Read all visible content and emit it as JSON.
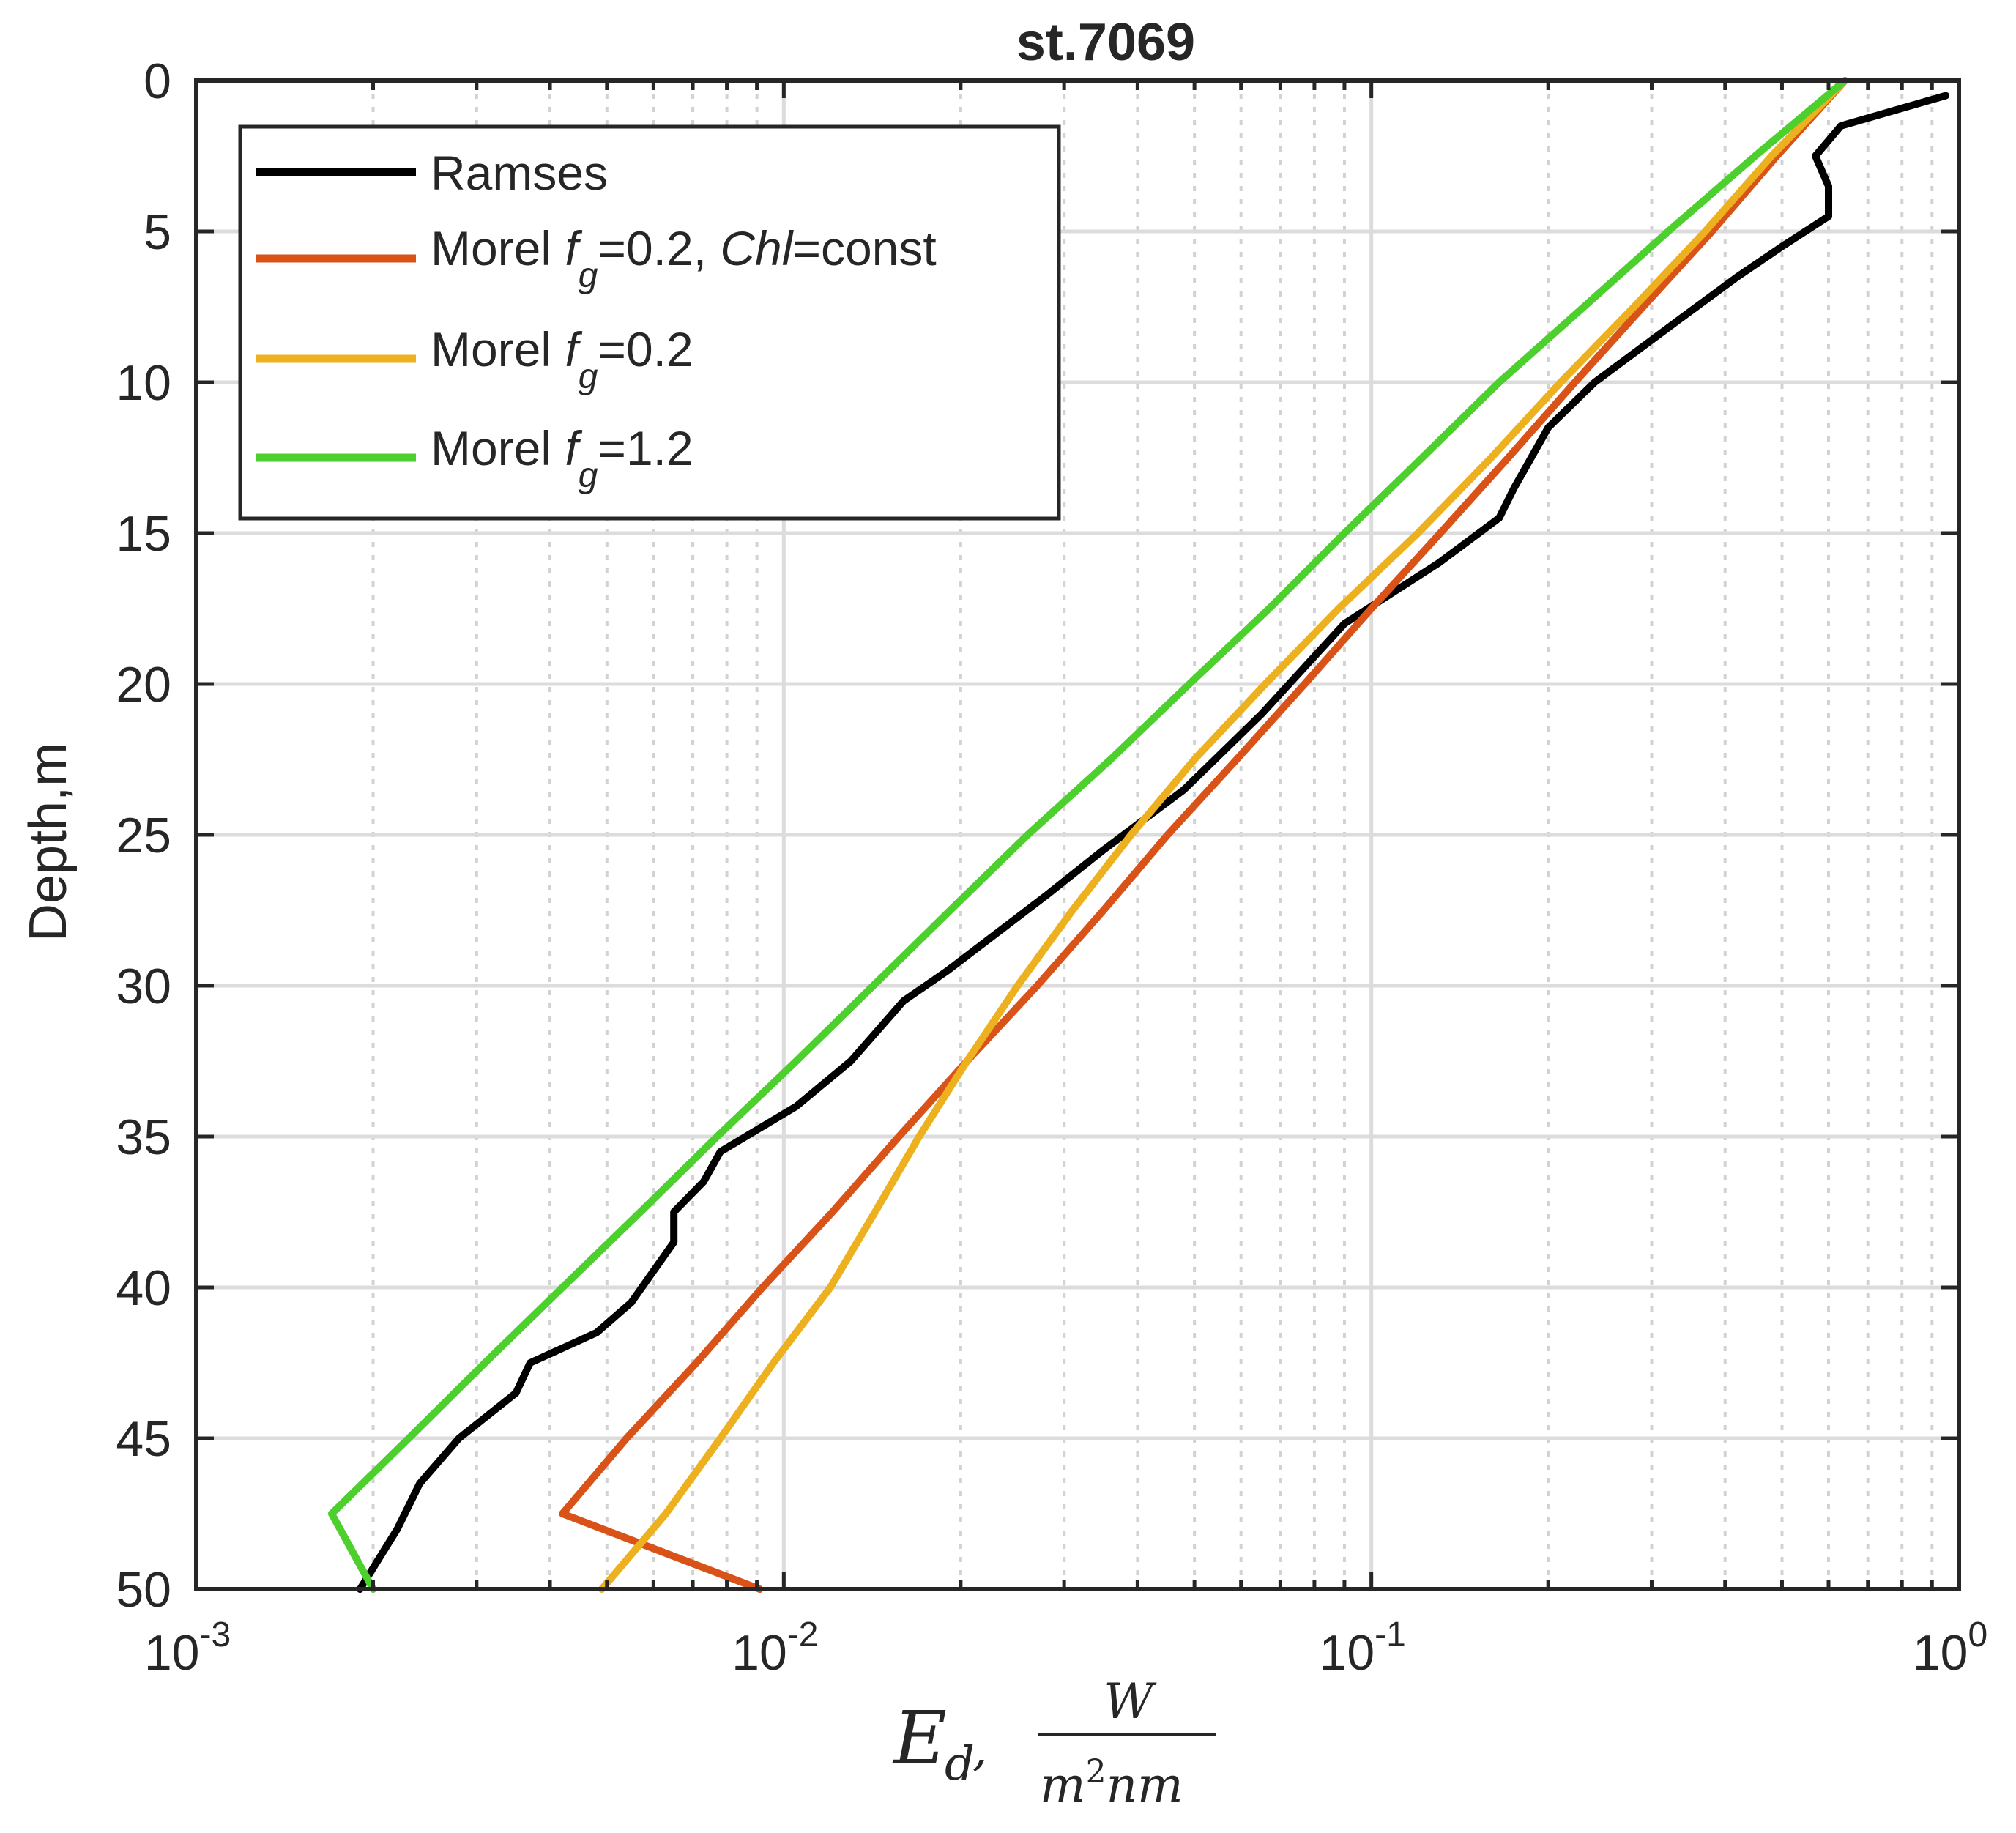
{
  "chart_data": {
    "type": "line",
    "title": "st.7069",
    "ylabel": "Depth,m",
    "xlabel": {
      "symbol": "E",
      "subscript": "d",
      "separator": ",",
      "numerator": "W",
      "denominator_m": "m",
      "denominator_power": "2",
      "denominator_rest": "nm"
    },
    "x_scale": "log",
    "xlim": [
      0.001,
      1
    ],
    "ylim": [
      0,
      50
    ],
    "y_reversed": true,
    "grid": true,
    "legend_position": "top-left",
    "x_ticks": [
      {
        "value": 0.001,
        "base": "10",
        "exp": "-3"
      },
      {
        "value": 0.01,
        "base": "10",
        "exp": "-2"
      },
      {
        "value": 0.1,
        "base": "10",
        "exp": "-1"
      },
      {
        "value": 1,
        "base": "10",
        "exp": "0"
      }
    ],
    "y_ticks": [
      {
        "value": 0,
        "label": "0"
      },
      {
        "value": 5,
        "label": "5"
      },
      {
        "value": 10,
        "label": "10"
      },
      {
        "value": 15,
        "label": "15"
      },
      {
        "value": 20,
        "label": "20"
      },
      {
        "value": 25,
        "label": "25"
      },
      {
        "value": 30,
        "label": "30"
      },
      {
        "value": 35,
        "label": "35"
      },
      {
        "value": 40,
        "label": "40"
      },
      {
        "value": 45,
        "label": "45"
      },
      {
        "value": 50,
        "label": "50"
      }
    ],
    "series": [
      {
        "name": "Ramses",
        "legend": {
          "pre": "Ramses"
        },
        "color": "#000000",
        "points": [
          [
            0.95,
            0.5
          ],
          [
            0.63,
            1.5
          ],
          [
            0.57,
            2.5
          ],
          [
            0.6,
            3.5
          ],
          [
            0.6,
            4.5
          ],
          [
            0.5,
            5.5
          ],
          [
            0.42,
            6.5
          ],
          [
            0.33,
            8.0
          ],
          [
            0.24,
            10.0
          ],
          [
            0.2,
            11.5
          ],
          [
            0.175,
            13.5
          ],
          [
            0.165,
            14.5
          ],
          [
            0.13,
            16.0
          ],
          [
            0.09,
            18.0
          ],
          [
            0.065,
            21.0
          ],
          [
            0.048,
            23.5
          ],
          [
            0.035,
            25.5
          ],
          [
            0.028,
            27.0
          ],
          [
            0.019,
            29.5
          ],
          [
            0.016,
            30.5
          ],
          [
            0.013,
            32.5
          ],
          [
            0.0105,
            34.0
          ],
          [
            0.0078,
            35.5
          ],
          [
            0.0073,
            36.5
          ],
          [
            0.0065,
            37.5
          ],
          [
            0.0065,
            38.5
          ],
          [
            0.0055,
            40.5
          ],
          [
            0.0048,
            41.5
          ],
          [
            0.0037,
            42.5
          ],
          [
            0.0035,
            43.5
          ],
          [
            0.0028,
            45.0
          ],
          [
            0.0024,
            46.5
          ],
          [
            0.0022,
            48.0
          ],
          [
            0.0019,
            50.0
          ]
        ]
      },
      {
        "name": "Morel fg=0.2, Chl=const",
        "legend": {
          "pre": "Morel ",
          "f": "f",
          "sub": "g",
          "mid": "=0.2, ",
          "chl": "Chl",
          "post": "=const"
        },
        "color": "#D95319",
        "points": [
          [
            0.64,
            0
          ],
          [
            0.49,
            2.5
          ],
          [
            0.38,
            5
          ],
          [
            0.29,
            7.5
          ],
          [
            0.222,
            10
          ],
          [
            0.171,
            12.5
          ],
          [
            0.131,
            15
          ],
          [
            0.1,
            17.5
          ],
          [
            0.077,
            20
          ],
          [
            0.059,
            22.5
          ],
          [
            0.045,
            25
          ],
          [
            0.035,
            27.5
          ],
          [
            0.027,
            30
          ],
          [
            0.0205,
            32.5
          ],
          [
            0.0157,
            35
          ],
          [
            0.0121,
            37.5
          ],
          [
            0.0092,
            40
          ],
          [
            0.0071,
            42.5
          ],
          [
            0.0054,
            45
          ],
          [
            0.0042,
            47.5
          ],
          [
            0.0091,
            50
          ]
        ]
      },
      {
        "name": "Morel fg=0.2",
        "legend": {
          "pre": "Morel ",
          "f": "f",
          "sub": "g",
          "post": "=0.2"
        },
        "color": "#EDB120",
        "points": [
          [
            0.64,
            0
          ],
          [
            0.48,
            2.5
          ],
          [
            0.37,
            5
          ],
          [
            0.28,
            7.5
          ],
          [
            0.21,
            10
          ],
          [
            0.16,
            12.5
          ],
          [
            0.12,
            15
          ],
          [
            0.088,
            17.5
          ],
          [
            0.066,
            20
          ],
          [
            0.05,
            22.5
          ],
          [
            0.039,
            25
          ],
          [
            0.031,
            27.5
          ],
          [
            0.025,
            30
          ],
          [
            0.0205,
            32.5
          ],
          [
            0.017,
            35
          ],
          [
            0.0143,
            37.5
          ],
          [
            0.012,
            40
          ],
          [
            0.0096,
            42.5
          ],
          [
            0.0078,
            45
          ],
          [
            0.0063,
            47.5
          ],
          [
            0.0049,
            50
          ]
        ]
      },
      {
        "name": "Morel fg=1.2",
        "legend": {
          "pre": "Morel ",
          "f": "f",
          "sub": "g",
          "post": "=1.2"
        },
        "color": "#4DCF2E",
        "points": [
          [
            0.64,
            0
          ],
          [
            0.45,
            2.5
          ],
          [
            0.32,
            5
          ],
          [
            0.23,
            7.5
          ],
          [
            0.165,
            10
          ],
          [
            0.122,
            12.5
          ],
          [
            0.09,
            15
          ],
          [
            0.067,
            17.5
          ],
          [
            0.049,
            20
          ],
          [
            0.036,
            22.5
          ],
          [
            0.026,
            25
          ],
          [
            0.0192,
            27.5
          ],
          [
            0.0142,
            30
          ],
          [
            0.0105,
            32.5
          ],
          [
            0.0077,
            35
          ],
          [
            0.0057,
            37.5
          ],
          [
            0.0042,
            40
          ],
          [
            0.0031,
            42.5
          ],
          [
            0.0023,
            45
          ],
          [
            0.0017,
            47.5
          ],
          [
            0.002,
            50
          ]
        ]
      }
    ]
  }
}
